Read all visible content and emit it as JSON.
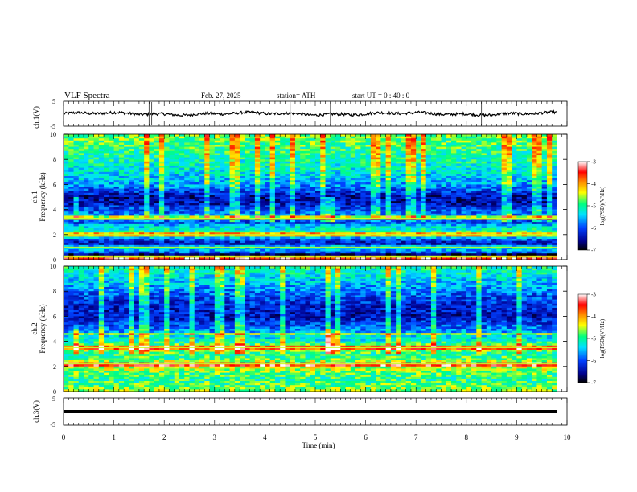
{
  "header": {
    "title": "VLF  Spectra",
    "date": "Feb. 27, 2025",
    "station": "station= ATH",
    "start_ut": "start  UT  =    0  : 40 : 0"
  },
  "chart_data": [
    {
      "type": "line",
      "panel": "ch1-waveform",
      "ylabel": "ch.1(V)",
      "ylim": [
        -5,
        5
      ],
      "yticks": [
        "5",
        "-5"
      ],
      "xlim": [
        0,
        10
      ],
      "x_extent_min": 9.8,
      "baseline": 0.0,
      "line_color": "#000000",
      "spikes_min": [
        1.7,
        1.75,
        4.5,
        5.3,
        8.3
      ]
    },
    {
      "type": "heatmap",
      "panel": "ch1-spectrogram",
      "ylabel": "ch.1\nFrequency (kHz)",
      "ylim": [
        0,
        10
      ],
      "yticks": [
        "0",
        "2",
        "4",
        "6",
        "8",
        "10"
      ],
      "xlim": [
        0,
        10
      ],
      "x_extent_min": 9.8,
      "colorbar": {
        "label": "log(PSD)(V²/Hz)",
        "range": [
          -7,
          -3
        ],
        "ticks": [
          "-3",
          "-4",
          "-5",
          "-6",
          "-7"
        ]
      },
      "profile_khz": [
        0,
        0.25,
        0.4,
        0.7,
        1.0,
        1.5,
        2.0,
        2.4,
        2.7,
        3.0,
        3.3,
        3.6,
        4.0,
        4.5,
        5.0,
        6.0,
        7.0,
        8.0,
        9.0,
        10.0
      ],
      "profile_log_psd": [
        -3.8,
        -5.0,
        -6.8,
        -5.4,
        -6.4,
        -6.2,
        -4.8,
        -5.2,
        -5.4,
        -6.3,
        -5.0,
        -5.8,
        -6.0,
        -6.4,
        -6.5,
        -5.6,
        -5.3,
        -5.1,
        -4.9,
        -4.7
      ],
      "bands_khz": [
        0.2,
        1.0,
        2.0,
        3.3
      ],
      "bursts_min": [
        0.25,
        5.3
      ]
    },
    {
      "type": "heatmap",
      "panel": "ch2-spectrogram",
      "ylabel": "ch.2\nFrequency (kHz)",
      "ylim": [
        0,
        10
      ],
      "yticks": [
        "0",
        "2",
        "4",
        "6",
        "8",
        "10"
      ],
      "xlim": [
        0,
        10
      ],
      "x_extent_min": 9.8,
      "colorbar": {
        "label": "log(PSD)(V²/Hz)",
        "range": [
          -7,
          -3
        ],
        "ticks": [
          "-3",
          "-4",
          "-5",
          "-6",
          "-7"
        ]
      },
      "profile_khz": [
        0,
        0.5,
        1.0,
        1.5,
        2.0,
        2.2,
        2.5,
        3.0,
        3.5,
        4.0,
        4.5,
        5.0,
        6.0,
        7.0,
        8.0,
        9.0,
        10.0
      ],
      "profile_log_psd": [
        -4.6,
        -4.8,
        -5.0,
        -4.8,
        -4.4,
        -4.0,
        -4.8,
        -5.0,
        -4.4,
        -5.2,
        -5.4,
        -5.8,
        -6.4,
        -6.2,
        -5.8,
        -5.4,
        -5.0
      ],
      "bands_khz": [
        2.2,
        3.5,
        4.6
      ],
      "bursts_min": [
        0.25,
        5.3
      ]
    },
    {
      "type": "line",
      "panel": "ch3-waveform",
      "ylabel": "ch.3(V)",
      "ylim": [
        -5,
        5
      ],
      "yticks": [
        "5",
        "-5"
      ],
      "xlim": [
        0,
        10
      ],
      "x_extent_min": 9.8,
      "baseline": 0.0,
      "line_color": "#000000"
    }
  ],
  "xaxis": {
    "label": "Time  (min)",
    "ticks": [
      "0",
      "1",
      "2",
      "3",
      "4",
      "5",
      "6",
      "7",
      "8",
      "9",
      "10"
    ]
  }
}
